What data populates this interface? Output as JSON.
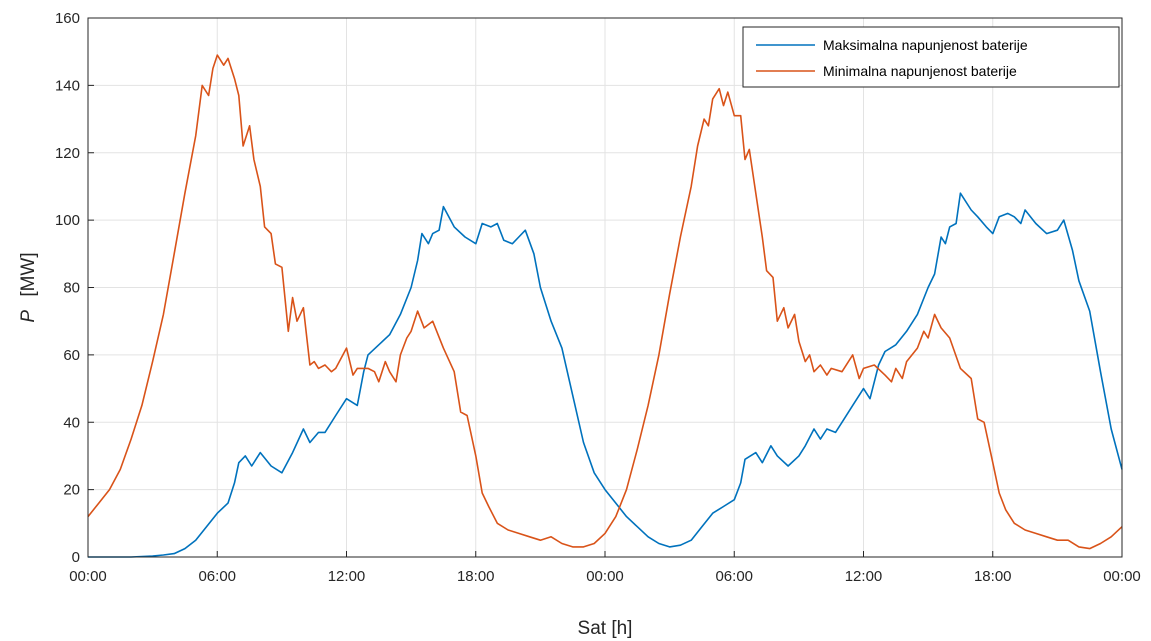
{
  "chart_data": {
    "type": "line",
    "xlabel": "Sat [h]",
    "ylabel_symbol": "P",
    "ylabel_unit": "[MW]",
    "x_ticks": [
      "00:00",
      "06:00",
      "12:00",
      "18:00",
      "00:00",
      "06:00",
      "12:00",
      "18:00",
      "00:00"
    ],
    "x_range_hours": [
      0,
      48
    ],
    "ylim": [
      0,
      160
    ],
    "y_ticks": [
      0,
      20,
      40,
      60,
      80,
      100,
      120,
      140,
      160
    ],
    "grid": true,
    "legend_position": "top-right",
    "series": [
      {
        "name": "Maksimalna napunjenost baterije",
        "color": "#0072BD",
        "points": [
          [
            0,
            0
          ],
          [
            1,
            0
          ],
          [
            2,
            0
          ],
          [
            3,
            0.3
          ],
          [
            3.5,
            0.6
          ],
          [
            4,
            1
          ],
          [
            4.5,
            2.5
          ],
          [
            5,
            5
          ],
          [
            5.5,
            9
          ],
          [
            6,
            13
          ],
          [
            6.5,
            16
          ],
          [
            6.8,
            22
          ],
          [
            7,
            28
          ],
          [
            7.3,
            30
          ],
          [
            7.6,
            27
          ],
          [
            8,
            31
          ],
          [
            8.5,
            27
          ],
          [
            9,
            25
          ],
          [
            9.5,
            31
          ],
          [
            10,
            38
          ],
          [
            10.3,
            34
          ],
          [
            10.7,
            37
          ],
          [
            11,
            37
          ],
          [
            11.5,
            42
          ],
          [
            12,
            47
          ],
          [
            12.5,
            45
          ],
          [
            12.8,
            55
          ],
          [
            13,
            60
          ],
          [
            13.5,
            63
          ],
          [
            14,
            66
          ],
          [
            14.5,
            72
          ],
          [
            15,
            80
          ],
          [
            15.3,
            88
          ],
          [
            15.5,
            96
          ],
          [
            15.8,
            93
          ],
          [
            16,
            96
          ],
          [
            16.3,
            97
          ],
          [
            16.5,
            104
          ],
          [
            17,
            98
          ],
          [
            17.5,
            95
          ],
          [
            18,
            93
          ],
          [
            18.3,
            99
          ],
          [
            18.7,
            98
          ],
          [
            19,
            99
          ],
          [
            19.3,
            94
          ],
          [
            19.7,
            93
          ],
          [
            20,
            95
          ],
          [
            20.3,
            97
          ],
          [
            20.7,
            90
          ],
          [
            21,
            80
          ],
          [
            21.5,
            70
          ],
          [
            22,
            62
          ],
          [
            22.5,
            48
          ],
          [
            23,
            34
          ],
          [
            23.5,
            25
          ],
          [
            24,
            20
          ],
          [
            24.5,
            16
          ],
          [
            25,
            12
          ],
          [
            25.5,
            9
          ],
          [
            26,
            6
          ],
          [
            26.5,
            4
          ],
          [
            27,
            3
          ],
          [
            27.5,
            3.5
          ],
          [
            28,
            5
          ],
          [
            28.5,
            9
          ],
          [
            29,
            13
          ],
          [
            29.5,
            15
          ],
          [
            30,
            17
          ],
          [
            30.3,
            22
          ],
          [
            30.5,
            29
          ],
          [
            31,
            31
          ],
          [
            31.3,
            28
          ],
          [
            31.7,
            33
          ],
          [
            32,
            30
          ],
          [
            32.5,
            27
          ],
          [
            33,
            30
          ],
          [
            33.3,
            33
          ],
          [
            33.7,
            38
          ],
          [
            34,
            35
          ],
          [
            34.3,
            38
          ],
          [
            34.7,
            37
          ],
          [
            35,
            40
          ],
          [
            35.5,
            45
          ],
          [
            36,
            50
          ],
          [
            36.3,
            47
          ],
          [
            36.7,
            57
          ],
          [
            37,
            61
          ],
          [
            37.5,
            63
          ],
          [
            38,
            67
          ],
          [
            38.5,
            72
          ],
          [
            39,
            80
          ],
          [
            39.3,
            84
          ],
          [
            39.6,
            95
          ],
          [
            39.8,
            93
          ],
          [
            40,
            98
          ],
          [
            40.3,
            99
          ],
          [
            40.5,
            108
          ],
          [
            41,
            103
          ],
          [
            41.3,
            101
          ],
          [
            41.7,
            98
          ],
          [
            42,
            96
          ],
          [
            42.3,
            101
          ],
          [
            42.7,
            102
          ],
          [
            43,
            101
          ],
          [
            43.3,
            99
          ],
          [
            43.5,
            103
          ],
          [
            44,
            99
          ],
          [
            44.5,
            96
          ],
          [
            45,
            97
          ],
          [
            45.3,
            100
          ],
          [
            45.7,
            91
          ],
          [
            46,
            82
          ],
          [
            46.5,
            73
          ],
          [
            47,
            55
          ],
          [
            47.5,
            38
          ],
          [
            48,
            26
          ]
        ]
      },
      {
        "name": "Minimalna napunjenost baterije",
        "color": "#D95319",
        "points": [
          [
            0,
            12
          ],
          [
            0.5,
            16
          ],
          [
            1,
            20
          ],
          [
            1.5,
            26
          ],
          [
            2,
            35
          ],
          [
            2.5,
            45
          ],
          [
            3,
            58
          ],
          [
            3.5,
            72
          ],
          [
            4,
            90
          ],
          [
            4.5,
            108
          ],
          [
            5,
            125
          ],
          [
            5.3,
            140
          ],
          [
            5.6,
            137
          ],
          [
            5.8,
            145
          ],
          [
            6,
            149
          ],
          [
            6.3,
            146
          ],
          [
            6.5,
            148
          ],
          [
            6.8,
            142
          ],
          [
            7,
            137
          ],
          [
            7.2,
            122
          ],
          [
            7.5,
            128
          ],
          [
            7.7,
            118
          ],
          [
            8,
            110
          ],
          [
            8.2,
            98
          ],
          [
            8.5,
            96
          ],
          [
            8.7,
            87
          ],
          [
            9,
            86
          ],
          [
            9.3,
            67
          ],
          [
            9.5,
            77
          ],
          [
            9.7,
            70
          ],
          [
            10,
            74
          ],
          [
            10.3,
            57
          ],
          [
            10.5,
            58
          ],
          [
            10.7,
            56
          ],
          [
            11,
            57
          ],
          [
            11.3,
            55
          ],
          [
            11.5,
            56
          ],
          [
            12,
            62
          ],
          [
            12.3,
            54
          ],
          [
            12.5,
            56
          ],
          [
            13,
            56
          ],
          [
            13.3,
            55
          ],
          [
            13.5,
            52
          ],
          [
            13.8,
            58
          ],
          [
            14,
            55
          ],
          [
            14.3,
            52
          ],
          [
            14.5,
            60
          ],
          [
            14.8,
            65
          ],
          [
            15,
            67
          ],
          [
            15.3,
            73
          ],
          [
            15.6,
            68
          ],
          [
            16,
            70
          ],
          [
            16.5,
            62
          ],
          [
            17,
            55
          ],
          [
            17.3,
            43
          ],
          [
            17.6,
            42
          ],
          [
            18,
            30
          ],
          [
            18.3,
            19
          ],
          [
            18.6,
            15
          ],
          [
            19,
            10
          ],
          [
            19.5,
            8
          ],
          [
            20,
            7
          ],
          [
            20.5,
            6
          ],
          [
            21,
            5
          ],
          [
            21.5,
            6
          ],
          [
            22,
            4
          ],
          [
            22.5,
            3
          ],
          [
            23,
            3
          ],
          [
            23.5,
            4
          ],
          [
            24,
            7
          ],
          [
            24.5,
            12
          ],
          [
            25,
            20
          ],
          [
            25.5,
            32
          ],
          [
            26,
            45
          ],
          [
            26.5,
            60
          ],
          [
            27,
            78
          ],
          [
            27.5,
            95
          ],
          [
            28,
            110
          ],
          [
            28.3,
            122
          ],
          [
            28.6,
            130
          ],
          [
            28.8,
            128
          ],
          [
            29,
            136
          ],
          [
            29.3,
            139
          ],
          [
            29.5,
            134
          ],
          [
            29.7,
            138
          ],
          [
            30,
            131
          ],
          [
            30.3,
            131
          ],
          [
            30.5,
            118
          ],
          [
            30.7,
            121
          ],
          [
            31,
            108
          ],
          [
            31.3,
            95
          ],
          [
            31.5,
            85
          ],
          [
            31.8,
            83
          ],
          [
            32,
            70
          ],
          [
            32.3,
            74
          ],
          [
            32.5,
            68
          ],
          [
            32.8,
            72
          ],
          [
            33,
            64
          ],
          [
            33.3,
            58
          ],
          [
            33.5,
            60
          ],
          [
            33.7,
            55
          ],
          [
            34,
            57
          ],
          [
            34.3,
            54
          ],
          [
            34.5,
            56
          ],
          [
            35,
            55
          ],
          [
            35.5,
            60
          ],
          [
            35.8,
            53
          ],
          [
            36,
            56
          ],
          [
            36.5,
            57
          ],
          [
            37,
            54
          ],
          [
            37.3,
            52
          ],
          [
            37.5,
            56
          ],
          [
            37.8,
            53
          ],
          [
            38,
            58
          ],
          [
            38.5,
            62
          ],
          [
            38.8,
            67
          ],
          [
            39,
            65
          ],
          [
            39.3,
            72
          ],
          [
            39.6,
            68
          ],
          [
            40,
            65
          ],
          [
            40.5,
            56
          ],
          [
            41,
            53
          ],
          [
            41.3,
            41
          ],
          [
            41.6,
            40
          ],
          [
            42,
            28
          ],
          [
            42.3,
            19
          ],
          [
            42.6,
            14
          ],
          [
            43,
            10
          ],
          [
            43.5,
            8
          ],
          [
            44,
            7
          ],
          [
            44.5,
            6
          ],
          [
            45,
            5
          ],
          [
            45.5,
            5
          ],
          [
            46,
            3
          ],
          [
            46.5,
            2.5
          ],
          [
            47,
            4
          ],
          [
            47.5,
            6
          ],
          [
            48,
            9
          ]
        ]
      }
    ]
  }
}
